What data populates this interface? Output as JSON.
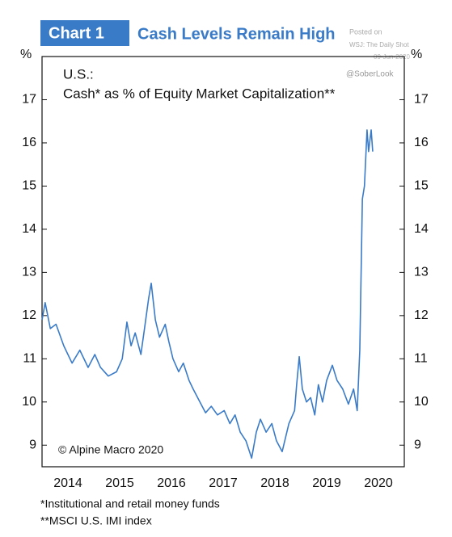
{
  "chart_data": {
    "type": "line",
    "chart_label": "Chart 1",
    "title": "Cash Levels Remain High",
    "subtitle": [
      "U.S.:",
      "Cash* as % of Equity Market Capitalization**"
    ],
    "y_unit": "%",
    "source": "© Alpine Macro 2020",
    "footnotes": [
      "*Institutional and retail money funds",
      "**MSCI U.S. IMI index"
    ],
    "watermark": [
      "Posted on",
      "WSJ: The Daily Shot",
      "09-Jun-2020",
      "@SoberLook"
    ],
    "xlim": [
      2014,
      2021
    ],
    "xticks": [
      {
        "value": 2014.5,
        "label": "2014"
      },
      {
        "value": 2015.5,
        "label": "2015"
      },
      {
        "value": 2016.5,
        "label": "2016"
      },
      {
        "value": 2017.5,
        "label": "2017"
      },
      {
        "value": 2018.5,
        "label": "2018"
      },
      {
        "value": 2019.5,
        "label": "2019"
      },
      {
        "value": 2020.5,
        "label": "2020"
      }
    ],
    "ylim": [
      8.5,
      18
    ],
    "yticks": [
      9,
      10,
      11,
      12,
      13,
      14,
      15,
      16,
      17
    ],
    "y2lim": [
      8.5,
      18
    ],
    "y2ticks": [
      9,
      10,
      11,
      12,
      13,
      14,
      15,
      16,
      17
    ],
    "series": [
      {
        "name": "Cash as % of Equity Market Capitalization",
        "color": "#3a7bc8",
        "x": [
          2014.0,
          2014.06,
          2014.16,
          2014.27,
          2014.42,
          2014.58,
          2014.73,
          2014.89,
          2015.02,
          2015.13,
          2015.28,
          2015.44,
          2015.55,
          2015.64,
          2015.72,
          2015.8,
          2015.91,
          2015.98,
          2016.06,
          2016.11,
          2016.19,
          2016.27,
          2016.38,
          2016.45,
          2016.53,
          2016.64,
          2016.73,
          2016.84,
          2016.92,
          2017.05,
          2017.16,
          2017.27,
          2017.39,
          2017.52,
          2017.63,
          2017.73,
          2017.83,
          2017.94,
          2018.05,
          2018.14,
          2018.22,
          2018.33,
          2018.44,
          2018.53,
          2018.64,
          2018.77,
          2018.88,
          2018.92,
          2018.97,
          2019.03,
          2019.11,
          2019.19,
          2019.27,
          2019.34,
          2019.42,
          2019.5,
          2019.61,
          2019.7,
          2019.81,
          2019.92,
          2020.02,
          2020.09,
          2020.14,
          2020.19,
          2020.23,
          2020.28,
          2020.31,
          2020.36,
          2020.39
        ],
        "values": [
          11.9,
          12.3,
          11.7,
          11.8,
          11.3,
          10.9,
          11.2,
          10.8,
          11.1,
          10.8,
          10.6,
          10.7,
          11.0,
          11.85,
          11.3,
          11.6,
          11.1,
          11.7,
          12.4,
          12.75,
          11.9,
          11.5,
          11.8,
          11.4,
          11.0,
          10.7,
          10.9,
          10.5,
          10.3,
          10.0,
          9.75,
          9.9,
          9.7,
          9.8,
          9.5,
          9.7,
          9.3,
          9.1,
          8.7,
          9.3,
          9.6,
          9.3,
          9.5,
          9.1,
          8.85,
          9.5,
          9.8,
          10.4,
          11.05,
          10.3,
          10.0,
          10.1,
          9.7,
          10.4,
          10.0,
          10.5,
          10.85,
          10.5,
          10.3,
          9.95,
          10.3,
          9.8,
          11.2,
          14.7,
          15.0,
          16.3,
          15.8,
          16.3,
          15.8
        ]
      }
    ]
  }
}
